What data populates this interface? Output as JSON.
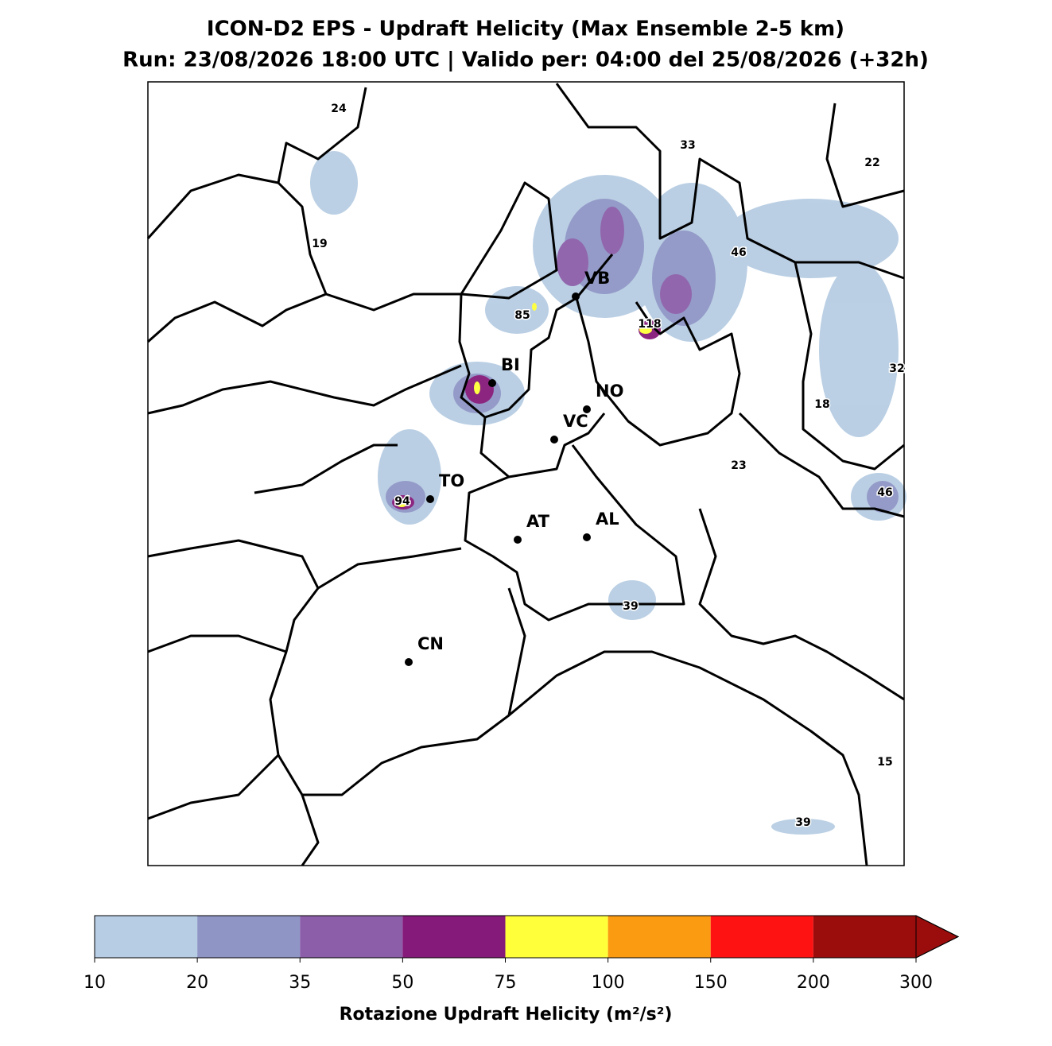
{
  "title": "ICON-D2 EPS - Updraft Helicity (Max Ensemble 2-5 km)",
  "subtitle": "Run: 23/08/2026 18:00 UTC | Valido per: 04:00 del 25/08/2026 (+32h)",
  "cities": [
    "VB",
    "BI",
    "NO",
    "VC",
    "TO",
    "AT",
    "AL",
    "CN"
  ],
  "max_labels": [
    24,
    33,
    22,
    19,
    46,
    85,
    118,
    32,
    18,
    23,
    94,
    46,
    39,
    15,
    39
  ],
  "colorbar": {
    "ticks": [
      10,
      20,
      35,
      50,
      75,
      100,
      150,
      200,
      300
    ],
    "colors": [
      "#b7cde3",
      "#8f96c6",
      "#8c5ea9",
      "#861a7a",
      "#ffff3a",
      "#fb9b12",
      "#fe1212",
      "#9b0d0d"
    ],
    "extend": "max",
    "label": "Rotazione Updraft Helicity (m²/s²)"
  }
}
